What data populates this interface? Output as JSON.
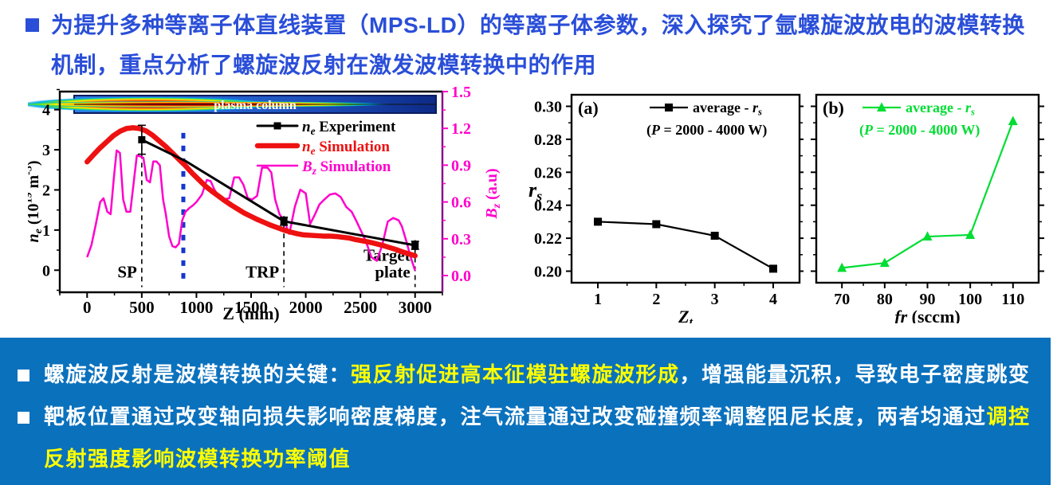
{
  "heading": {
    "text": "为提升多种等离子体直线装置（MPS-LD）的等离子体参数，深入探究了氩螺旋波放电的波模转换机制，重点分析了螺旋波反射在激发波模转换中的作用"
  },
  "banner": {
    "background": "#0a71bd",
    "bullets": [
      {
        "segments": [
          {
            "text": "螺旋波反射是波模转换的关键：",
            "color": "white"
          },
          {
            "text": "强反射促进高本征模驻螺旋波形成",
            "color": "yellow"
          },
          {
            "text": "，增强能量沉积，导致电子密度跳变",
            "color": "white"
          }
        ]
      },
      {
        "segments": [
          {
            "text": "靶板位置通过改变轴向损失影响密度梯度，注气流量通过改变碰撞频率调整阻尼长度，两者均通过",
            "color": "white"
          },
          {
            "text": "调控反射强度影响波模转换功率阈值",
            "color": "yellow"
          }
        ]
      }
    ]
  },
  "colors": {
    "heading_blue": "#2a4ed8",
    "banner_blue": "#0a71bd",
    "highlight_yellow": "#ffff00",
    "experiment_black": "#000000",
    "simulation_red": "#ee1111",
    "bz_magenta": "#ff00cc",
    "series_green": "#00dd33",
    "blue_dotted": "#1536cc"
  },
  "chart_data": [
    {
      "id": "ne_profile",
      "type": "line",
      "xlabel": "Z (mm)",
      "ylabel_left": "*n*_{e} (10^{19} m^{-3})",
      "ylabel_right": "*B*_{z} (a.u)",
      "xlim": [
        -250,
        3250
      ],
      "xticks": [
        0,
        500,
        1000,
        1500,
        2000,
        2500,
        3000
      ],
      "ylim_left": [
        -0.55,
        4.45
      ],
      "yticks_left": [
        0,
        1,
        2,
        3,
        4
      ],
      "ylim_right_top": 1.5,
      "yticks_right": [
        0.0,
        0.3,
        0.6,
        0.9,
        1.2,
        1.5
      ],
      "inset_label": "plasma column",
      "legend": [
        {
          "label": "*n*_{e} Experiment",
          "color": "#000000",
          "width": 3,
          "marker": "square"
        },
        {
          "label": "*n*_{e} Simulation",
          "color": "#ee1111",
          "width": 6.5
        },
        {
          "label": "*B*_{z} Simulation",
          "color": "#ff00cc",
          "width": 2.5
        }
      ],
      "series": {
        "experiment": {
          "axis": "left",
          "color": "#000000",
          "width": 3,
          "line": [
            [
              500,
              3.25
            ],
            [
              900,
              2.72
            ],
            [
              1800,
              1.22
            ],
            [
              3000,
              0.62
            ]
          ],
          "points": [
            {
              "z": 500,
              "v": 3.25,
              "err": 0.36
            },
            {
              "z": 1800,
              "v": 1.22,
              "err": 0.1
            },
            {
              "z": 3000,
              "v": 0.62,
              "err": 0.1
            }
          ]
        },
        "simulation": {
          "axis": "left",
          "color": "#ee1111",
          "width": 6.5,
          "line": [
            [
              0,
              2.7
            ],
            [
              60,
              2.88
            ],
            [
              120,
              3.05
            ],
            [
              180,
              3.2
            ],
            [
              240,
              3.35
            ],
            [
              300,
              3.46
            ],
            [
              360,
              3.53
            ],
            [
              420,
              3.55
            ],
            [
              480,
              3.53
            ],
            [
              540,
              3.47
            ],
            [
              600,
              3.36
            ],
            [
              660,
              3.22
            ],
            [
              720,
              3.08
            ],
            [
              780,
              2.92
            ],
            [
              840,
              2.76
            ],
            [
              900,
              2.6
            ],
            [
              960,
              2.42
            ],
            [
              1020,
              2.26
            ],
            [
              1080,
              2.1
            ],
            [
              1140,
              1.97
            ],
            [
              1200,
              1.85
            ],
            [
              1260,
              1.73
            ],
            [
              1320,
              1.62
            ],
            [
              1380,
              1.52
            ],
            [
              1440,
              1.42
            ],
            [
              1500,
              1.34
            ],
            [
              1560,
              1.26
            ],
            [
              1620,
              1.19
            ],
            [
              1680,
              1.12
            ],
            [
              1740,
              1.06
            ],
            [
              1800,
              1.0
            ],
            [
              1860,
              0.95
            ],
            [
              1920,
              0.91
            ],
            [
              1980,
              0.88
            ],
            [
              2040,
              0.87
            ],
            [
              2100,
              0.86
            ],
            [
              2160,
              0.85
            ],
            [
              2220,
              0.85
            ],
            [
              2280,
              0.84
            ],
            [
              2340,
              0.82
            ],
            [
              2400,
              0.8
            ],
            [
              2460,
              0.76
            ],
            [
              2520,
              0.73
            ],
            [
              2580,
              0.7
            ],
            [
              2640,
              0.66
            ],
            [
              2700,
              0.62
            ],
            [
              2760,
              0.57
            ],
            [
              2820,
              0.52
            ],
            [
              2880,
              0.46
            ],
            [
              2940,
              0.41
            ],
            [
              3000,
              0.36
            ]
          ]
        },
        "bz": {
          "axis": "right",
          "color": "#ff00cc",
          "width": 2.5,
          "line": [
            [
              0,
              0.15
            ],
            [
              40,
              0.25
            ],
            [
              80,
              0.42
            ],
            [
              120,
              0.6
            ],
            [
              150,
              0.63
            ],
            [
              185,
              0.52
            ],
            [
              215,
              0.5
            ],
            [
              245,
              0.8
            ],
            [
              270,
              1.02
            ],
            [
              300,
              1.0
            ],
            [
              330,
              0.62
            ],
            [
              360,
              0.52
            ],
            [
              395,
              0.52
            ],
            [
              425,
              0.75
            ],
            [
              455,
              0.98
            ],
            [
              490,
              0.97
            ],
            [
              515,
              0.96
            ],
            [
              545,
              0.78
            ],
            [
              575,
              0.76
            ],
            [
              605,
              0.93
            ],
            [
              635,
              0.93
            ],
            [
              665,
              0.9
            ],
            [
              695,
              0.62
            ],
            [
              720,
              0.5
            ],
            [
              750,
              0.32
            ],
            [
              780,
              0.24
            ],
            [
              810,
              0.23
            ],
            [
              840,
              0.26
            ],
            [
              870,
              0.45
            ],
            [
              900,
              0.52
            ],
            [
              935,
              0.55
            ],
            [
              965,
              0.57
            ],
            [
              1000,
              0.6
            ],
            [
              1050,
              0.66
            ],
            [
              1095,
              0.78
            ],
            [
              1130,
              0.77
            ],
            [
              1165,
              0.7
            ],
            [
              1200,
              0.65
            ],
            [
              1250,
              0.62
            ],
            [
              1300,
              0.63
            ],
            [
              1345,
              0.8
            ],
            [
              1390,
              0.8
            ],
            [
              1430,
              0.74
            ],
            [
              1470,
              0.63
            ],
            [
              1510,
              0.62
            ],
            [
              1555,
              0.65
            ],
            [
              1600,
              0.88
            ],
            [
              1650,
              0.88
            ],
            [
              1685,
              0.84
            ],
            [
              1720,
              0.62
            ],
            [
              1760,
              0.5
            ],
            [
              1800,
              0.45
            ],
            [
              1850,
              0.34
            ],
            [
              1900,
              0.56
            ],
            [
              1950,
              0.7
            ],
            [
              2000,
              0.67
            ],
            [
              2040,
              0.42
            ],
            [
              2085,
              0.5
            ],
            [
              2125,
              0.58
            ],
            [
              2170,
              0.62
            ],
            [
              2220,
              0.66
            ],
            [
              2270,
              0.67
            ],
            [
              2320,
              0.64
            ],
            [
              2370,
              0.56
            ],
            [
              2420,
              0.52
            ],
            [
              2460,
              0.45
            ],
            [
              2550,
              0.28
            ],
            [
              2600,
              0.15
            ],
            [
              2650,
              0.12
            ],
            [
              2700,
              0.25
            ],
            [
              2750,
              0.44
            ],
            [
              2800,
              0.47
            ],
            [
              2850,
              0.45
            ],
            [
              2880,
              0.4
            ],
            [
              2920,
              0.28
            ],
            [
              2960,
              0.15
            ],
            [
              3000,
              0.04
            ]
          ]
        }
      },
      "annotations": {
        "dashed_lines": [
          {
            "z": 500,
            "label": "SP",
            "top": 3.55
          },
          {
            "z": 1800,
            "label": "TRP",
            "top": 1.35
          },
          {
            "z": 3000,
            "label": "Target\nplate",
            "top": 0.75
          }
        ],
        "blue_dotted_z": 880
      }
    },
    {
      "id": "rs_vs_zt",
      "panel": "(a)",
      "type": "line",
      "xlabel": "*Z*_{t}",
      "ylabel": "*r*_{s}",
      "legend": "average - *r*_{s}",
      "legend_sub": "(*P* = 2000 - 4000 W)",
      "color": "#000000",
      "marker": "square",
      "x": [
        1,
        2,
        3,
        4
      ],
      "y": [
        0.23,
        0.2285,
        0.2215,
        0.2015
      ],
      "xlim": [
        0.55,
        4.45
      ],
      "xticks": [
        1,
        2,
        3,
        4
      ],
      "ylim": [
        0.193,
        0.307
      ],
      "yticks": [
        0.2,
        0.22,
        0.24,
        0.26,
        0.28,
        0.3
      ],
      "ytick_labels": [
        "0.20",
        "0.22",
        "0.24",
        "0.26",
        "0.28",
        "0.30"
      ],
      "show_ytick_labels": true
    },
    {
      "id": "rs_vs_fr",
      "panel": "(b)",
      "type": "line",
      "xlabel": "*fr* (sccm)",
      "ylabel": "",
      "legend": "average - *r*_{s}",
      "legend_sub": "(*P* = 2000 - 4000 W)",
      "color": "#00dd33",
      "marker": "triangle",
      "x": [
        70,
        80,
        90,
        100,
        110
      ],
      "y": [
        0.202,
        0.205,
        0.221,
        0.222,
        0.291
      ],
      "xlim": [
        64,
        116
      ],
      "xticks": [
        70,
        80,
        90,
        100,
        110
      ],
      "ylim": [
        0.193,
        0.307
      ],
      "yticks": [
        0.2,
        0.22,
        0.24,
        0.26,
        0.28,
        0.3
      ],
      "ytick_labels": [
        "0.20",
        "0.22",
        "0.24",
        "0.26",
        "0.28",
        "0.30"
      ],
      "show_ytick_labels": false
    }
  ]
}
